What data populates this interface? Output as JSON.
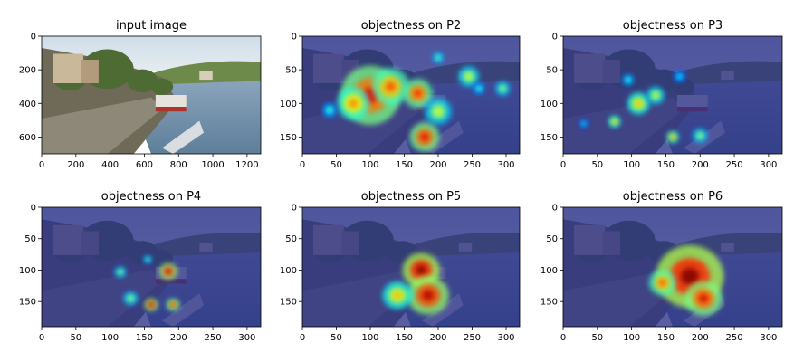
{
  "figure": {
    "panels": [
      {
        "title": "input image",
        "kind": "photo",
        "xlim": [
          0,
          1280
        ],
        "ylim": [
          0,
          700
        ],
        "xticks": [
          0,
          200,
          400,
          600,
          800,
          1000,
          1200
        ],
        "yticks": [
          0,
          200,
          400,
          600
        ],
        "heat_blobs": []
      },
      {
        "title": "objectness on P2",
        "kind": "heatmap",
        "xlim": [
          0,
          320
        ],
        "ylim": [
          0,
          175
        ],
        "xticks": [
          0,
          50,
          100,
          150,
          200,
          250,
          300
        ],
        "yticks": [
          0,
          50,
          100,
          150
        ],
        "heat_blobs": [
          {
            "x": 100,
            "y": 88,
            "r": 40,
            "v": 0.9
          },
          {
            "x": 75,
            "y": 100,
            "r": 22,
            "v": 0.75
          },
          {
            "x": 130,
            "y": 75,
            "r": 25,
            "v": 0.8
          },
          {
            "x": 170,
            "y": 85,
            "r": 20,
            "v": 0.85
          },
          {
            "x": 200,
            "y": 112,
            "r": 18,
            "v": 0.6
          },
          {
            "x": 200,
            "y": 32,
            "r": 8,
            "v": 0.5
          },
          {
            "x": 245,
            "y": 60,
            "r": 14,
            "v": 0.6
          },
          {
            "x": 295,
            "y": 78,
            "r": 10,
            "v": 0.55
          },
          {
            "x": 260,
            "y": 78,
            "r": 8,
            "v": 0.45
          },
          {
            "x": 180,
            "y": 150,
            "r": 20,
            "v": 0.9
          },
          {
            "x": 40,
            "y": 110,
            "r": 10,
            "v": 0.45
          }
        ]
      },
      {
        "title": "objectness on P3",
        "kind": "heatmap",
        "xlim": [
          0,
          320
        ],
        "ylim": [
          0,
          175
        ],
        "xticks": [
          0,
          50,
          100,
          150,
          200,
          250,
          300
        ],
        "yticks": [
          0,
          50,
          100,
          150
        ],
        "heat_blobs": [
          {
            "x": 110,
            "y": 100,
            "r": 15,
            "v": 0.7
          },
          {
            "x": 135,
            "y": 88,
            "r": 12,
            "v": 0.6
          },
          {
            "x": 75,
            "y": 127,
            "r": 8,
            "v": 0.7
          },
          {
            "x": 160,
            "y": 150,
            "r": 8,
            "v": 0.75
          },
          {
            "x": 200,
            "y": 148,
            "r": 10,
            "v": 0.55
          },
          {
            "x": 170,
            "y": 60,
            "r": 8,
            "v": 0.4
          },
          {
            "x": 95,
            "y": 65,
            "r": 8,
            "v": 0.45
          },
          {
            "x": 30,
            "y": 130,
            "r": 6,
            "v": 0.4
          }
        ]
      },
      {
        "title": "objectness on P4",
        "kind": "heatmap",
        "xlim": [
          0,
          320
        ],
        "ylim": [
          0,
          190
        ],
        "xticks": [
          0,
          50,
          100,
          150,
          200,
          250,
          300
        ],
        "yticks": [
          0,
          50,
          100,
          150
        ],
        "heat_blobs": [
          {
            "x": 185,
            "y": 102,
            "r": 12,
            "v": 0.95
          },
          {
            "x": 160,
            "y": 155,
            "r": 9,
            "v": 0.95
          },
          {
            "x": 192,
            "y": 155,
            "r": 9,
            "v": 0.85
          },
          {
            "x": 115,
            "y": 103,
            "r": 8,
            "v": 0.55
          },
          {
            "x": 130,
            "y": 145,
            "r": 10,
            "v": 0.55
          },
          {
            "x": 155,
            "y": 83,
            "r": 6,
            "v": 0.5
          }
        ]
      },
      {
        "title": "objectness on P5",
        "kind": "heatmap",
        "xlim": [
          0,
          320
        ],
        "ylim": [
          0,
          190
        ],
        "xticks": [
          0,
          50,
          100,
          150,
          200,
          250,
          300
        ],
        "yticks": [
          0,
          50,
          100,
          150
        ],
        "heat_blobs": [
          {
            "x": 175,
            "y": 100,
            "r": 25,
            "v": 1.0
          },
          {
            "x": 185,
            "y": 140,
            "r": 28,
            "v": 0.95
          },
          {
            "x": 140,
            "y": 140,
            "r": 20,
            "v": 0.7
          }
        ]
      },
      {
        "title": "objectness on P6",
        "kind": "heatmap",
        "xlim": [
          0,
          320
        ],
        "ylim": [
          0,
          190
        ],
        "xticks": [
          0,
          50,
          100,
          150,
          200,
          250,
          300
        ],
        "yticks": [
          0,
          50,
          100,
          150
        ],
        "heat_blobs": [
          {
            "x": 185,
            "y": 110,
            "r": 45,
            "v": 1.0
          },
          {
            "x": 205,
            "y": 145,
            "r": 25,
            "v": 0.9
          },
          {
            "x": 145,
            "y": 120,
            "r": 18,
            "v": 0.8
          }
        ]
      }
    ]
  }
}
